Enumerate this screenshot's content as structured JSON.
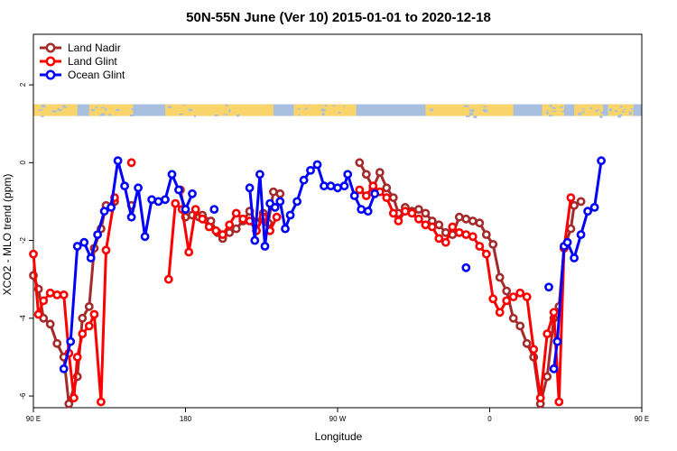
{
  "colors": {
    "land_nadir": "#a52a2a",
    "land_glint": "#ff0000",
    "ocean_glint": "#0000ff",
    "land_strip": "#f9d46b",
    "ocean_strip": "#a8bfe0"
  },
  "chart_data": {
    "type": "line",
    "title": "50N-55N June (Ver 10)   2015-01-01 to 2020-12-18",
    "xlabel": "Longitude",
    "ylabel": "XCO2 - MLO trend (ppm)",
    "xlim": [
      90,
      450
    ],
    "ylim": [
      -6.3,
      3.3
    ],
    "x_ticks": [
      {
        "value": 90,
        "label": "90 E"
      },
      {
        "value": 180,
        "label": "180"
      },
      {
        "value": 270,
        "label": "90 W"
      },
      {
        "value": 360,
        "label": "0"
      },
      {
        "value": 450,
        "label": "90 E"
      },
      {
        "value": 540,
        "label": "180"
      }
    ],
    "y_ticks": [
      {
        "value": 2,
        "label": "2"
      },
      {
        "value": 0,
        "label": "0"
      },
      {
        "value": -2,
        "label": "-2"
      },
      {
        "value": -4,
        "label": "-4"
      },
      {
        "value": -6,
        "label": "-6"
      }
    ],
    "legend_position": "top-left",
    "land_ocean_strip": {
      "y_range": [
        1.2,
        1.5
      ]
    },
    "series": [
      {
        "name": "Land Nadir",
        "color": "#a52a2a",
        "segments": [
          [
            [
              90,
              -2.9
            ],
            [
              93,
              -3.25
            ],
            [
              96,
              -4.0
            ],
            [
              100,
              -4.15
            ],
            [
              104,
              -4.65
            ],
            [
              108,
              -5.0
            ],
            [
              111,
              -6.2
            ],
            [
              116,
              -5.5
            ],
            [
              119,
              -4.0
            ],
            [
              123,
              -3.7
            ],
            [
              126,
              -2.2
            ],
            [
              130,
              -1.7
            ],
            [
              133,
              -1.1
            ],
            [
              138,
              -1.0
            ]
          ],
          [
            [
              148,
              -1.1
            ]
          ],
          [
            [
              177,
              -0.7
            ],
            [
              180,
              -1.4
            ],
            [
              184,
              -1.35
            ],
            [
              188,
              -1.4
            ],
            [
              190,
              -1.35
            ],
            [
              195,
              -1.5
            ],
            [
              199,
              -1.8
            ],
            [
              202,
              -1.95
            ],
            [
              206,
              -1.8
            ],
            [
              210,
              -1.7
            ],
            [
              214,
              -1.5
            ],
            [
              218,
              -1.25
            ],
            [
              222,
              -1.55
            ],
            [
              226,
              -1.3
            ],
            [
              229,
              -1.55
            ],
            [
              232,
              -0.75
            ],
            [
              236,
              -0.8
            ]
          ],
          [
            [
              283,
              0.0
            ],
            [
              287,
              -0.3
            ],
            [
              291,
              -0.65
            ],
            [
              295,
              -0.25
            ],
            [
              299,
              -0.65
            ],
            [
              303,
              -0.9
            ],
            [
              306,
              -1.3
            ],
            [
              310,
              -1.15
            ],
            [
              314,
              -1.25
            ],
            [
              318,
              -1.2
            ],
            [
              322,
              -1.3
            ],
            [
              326,
              -1.5
            ],
            [
              330,
              -1.6
            ],
            [
              334,
              -1.8
            ],
            [
              338,
              -1.85
            ],
            [
              342,
              -1.4
            ],
            [
              346,
              -1.45
            ],
            [
              350,
              -1.5
            ],
            [
              354,
              -1.55
            ],
            [
              358,
              -1.85
            ],
            [
              362,
              -2.1
            ],
            [
              366,
              -2.95
            ],
            [
              370,
              -3.3
            ],
            [
              374,
              -4.0
            ],
            [
              378,
              -4.2
            ],
            [
              382,
              -4.65
            ],
            [
              386,
              -5.0
            ],
            [
              390,
              -6.2
            ],
            [
              394,
              -5.5
            ],
            [
              398,
              -4.0
            ],
            [
              401,
              -3.7
            ],
            [
              404,
              -2.2
            ],
            [
              408,
              -1.7
            ],
            [
              410,
              -1.1
            ],
            [
              414,
              -1.0
            ]
          ]
        ]
      },
      {
        "name": "Land Glint",
        "color": "#ff0000",
        "segments": [
          [
            [
              90,
              -2.35
            ],
            [
              93,
              -3.9
            ],
            [
              96,
              -3.55
            ],
            [
              100,
              -3.35
            ],
            [
              104,
              -3.4
            ],
            [
              108,
              -3.4
            ],
            [
              111,
              -4.9
            ],
            [
              114,
              -6.05
            ],
            [
              116,
              -5.0
            ],
            [
              119,
              -4.4
            ],
            [
              123,
              -4.2
            ],
            [
              126,
              -3.9
            ],
            [
              130,
              -6.15
            ],
            [
              133,
              -2.25
            ],
            [
              138,
              -0.9
            ]
          ],
          [
            [
              148,
              0.0
            ]
          ],
          [
            [
              170,
              -3.0
            ],
            [
              174,
              -1.05
            ],
            [
              178,
              -1.2
            ],
            [
              182,
              -2.3
            ],
            [
              186,
              -1.2
            ],
            [
              190,
              -1.45
            ],
            [
              194,
              -1.65
            ],
            [
              198,
              -1.75
            ],
            [
              202,
              -1.85
            ],
            [
              206,
              -1.6
            ],
            [
              210,
              -1.3
            ],
            [
              214,
              -1.45
            ],
            [
              218,
              -1.5
            ],
            [
              222,
              -1.75
            ],
            [
              226,
              -1.4
            ],
            [
              230,
              -1.75
            ],
            [
              234,
              -1.4
            ]
          ],
          [
            [
              283,
              -0.7
            ],
            [
              287,
              -0.85
            ],
            [
              291,
              -0.6
            ],
            [
              295,
              -0.75
            ],
            [
              299,
              -0.9
            ],
            [
              303,
              -1.3
            ],
            [
              306,
              -1.5
            ],
            [
              310,
              -1.25
            ],
            [
              314,
              -1.3
            ],
            [
              318,
              -1.45
            ],
            [
              322,
              -1.6
            ],
            [
              326,
              -1.65
            ],
            [
              330,
              -1.95
            ],
            [
              334,
              -2.05
            ],
            [
              338,
              -1.65
            ],
            [
              342,
              -1.8
            ],
            [
              346,
              -1.85
            ],
            [
              350,
              -1.9
            ],
            [
              354,
              -2.15
            ],
            [
              358,
              -2.35
            ],
            [
              362,
              -3.5
            ],
            [
              366,
              -3.85
            ],
            [
              370,
              -3.55
            ],
            [
              374,
              -3.45
            ],
            [
              378,
              -3.35
            ],
            [
              382,
              -3.45
            ],
            [
              386,
              -4.8
            ],
            [
              390,
              -6.05
            ],
            [
              394,
              -4.4
            ],
            [
              398,
              -3.85
            ],
            [
              401,
              -6.15
            ],
            [
              404,
              -2.2
            ],
            [
              408,
              -0.9
            ]
          ]
        ]
      },
      {
        "name": "Ocean Glint",
        "color": "#0000ff",
        "segments": [
          [
            [
              108,
              -5.3
            ],
            [
              112,
              -4.6
            ],
            [
              116,
              -2.15
            ],
            [
              120,
              -2.05
            ],
            [
              124,
              -2.45
            ],
            [
              128,
              -1.85
            ],
            [
              132,
              -1.25
            ],
            [
              136,
              -1.15
            ],
            [
              140,
              0.05
            ],
            [
              144,
              -0.6
            ],
            [
              148,
              -1.4
            ],
            [
              152,
              -0.65
            ],
            [
              156,
              -1.9
            ],
            [
              160,
              -0.95
            ],
            [
              164,
              -1.0
            ],
            [
              168,
              -0.95
            ],
            [
              172,
              -0.3
            ],
            [
              176,
              -0.7
            ],
            [
              180,
              -1.2
            ],
            [
              184,
              -0.8
            ]
          ],
          [
            [
              197,
              -1.2
            ]
          ],
          [
            [
              218,
              -0.65
            ],
            [
              221,
              -2.0
            ],
            [
              224,
              -0.3
            ],
            [
              227,
              -2.15
            ],
            [
              230,
              -1.05
            ],
            [
              233,
              -1.15
            ],
            [
              236,
              -1.0
            ],
            [
              239,
              -1.7
            ],
            [
              242,
              -1.35
            ],
            [
              246,
              -1.0
            ],
            [
              250,
              -0.45
            ],
            [
              254,
              -0.2
            ],
            [
              258,
              -0.05
            ],
            [
              262,
              -0.6
            ],
            [
              266,
              -0.6
            ],
            [
              270,
              -0.65
            ],
            [
              274,
              -0.6
            ],
            [
              276,
              -0.3
            ],
            [
              280,
              -0.85
            ],
            [
              284,
              -1.2
            ],
            [
              288,
              -1.25
            ],
            [
              292,
              -0.8
            ]
          ],
          [
            [
              346,
              -2.7
            ]
          ],
          [
            [
              395,
              -3.2
            ]
          ],
          [
            [
              398,
              -5.3
            ],
            [
              400,
              -4.6
            ],
            [
              404,
              -2.15
            ],
            [
              406,
              -2.05
            ],
            [
              410,
              -2.45
            ],
            [
              414,
              -1.85
            ],
            [
              418,
              -1.25
            ],
            [
              422,
              -1.15
            ],
            [
              426,
              0.05
            ]
          ]
        ]
      }
    ]
  }
}
